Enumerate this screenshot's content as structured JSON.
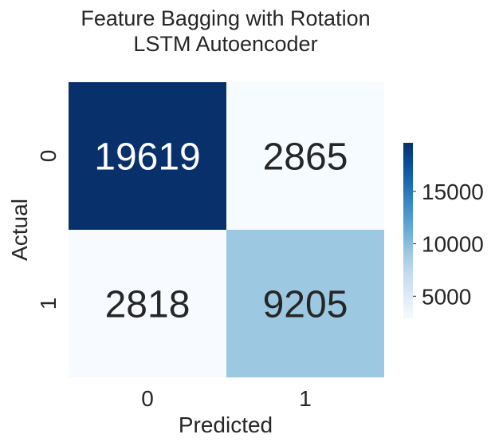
{
  "chart_data": {
    "type": "heatmap",
    "title_lines": [
      "Feature Bagging with Rotation",
      "LSTM Autoencoder"
    ],
    "xlabel": "Predicted",
    "ylabel": "Actual",
    "x_categories": [
      "0",
      "1"
    ],
    "y_categories": [
      "0",
      "1"
    ],
    "values": [
      [
        19619,
        2865
      ],
      [
        2818,
        9205
      ]
    ],
    "colormap": "Blues",
    "color_range": [
      2818,
      19619
    ],
    "colorbar_ticks": [
      5000,
      10000,
      15000
    ],
    "annotation_colors": {
      "dark_cell": "#ffffff",
      "light_cell": "#262626"
    }
  }
}
